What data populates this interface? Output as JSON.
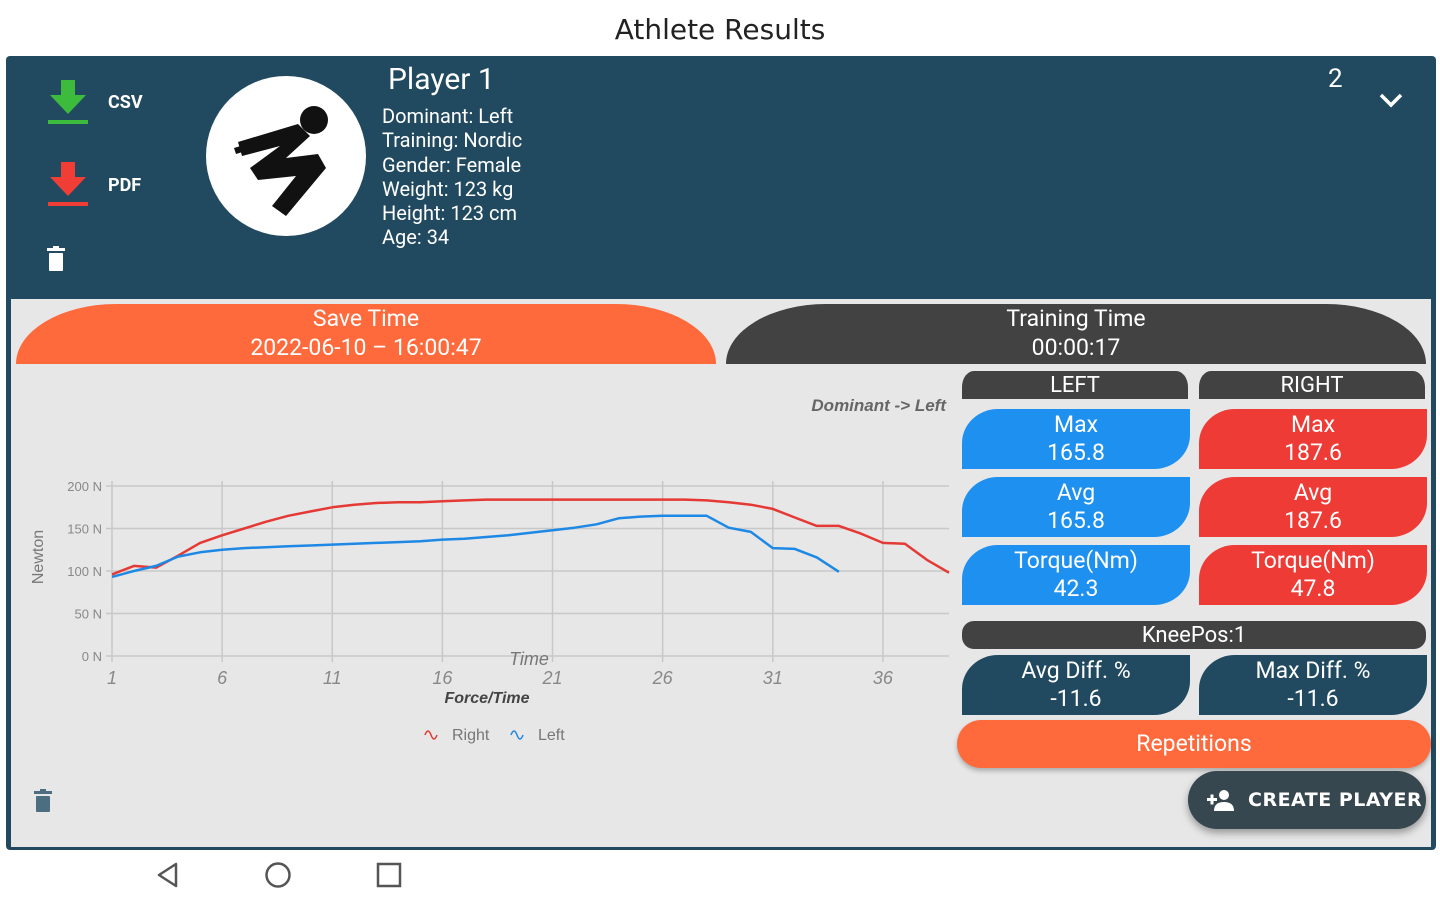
{
  "app": {
    "title": "Athlete Results"
  },
  "header": {
    "csv_label": "CSV",
    "pdf_label": "PDF",
    "player_name": "Player 1",
    "info": [
      "Dominant: Left",
      "Training: Nordic",
      "Gender: Female",
      "Weight: 123 kg",
      "Height: 123 cm",
      "Age: 34"
    ],
    "count": "2",
    "icons": {
      "csv": "download-green-icon",
      "pdf": "download-red-icon",
      "delete": "trash-icon",
      "expand": "chevron-down-icon"
    }
  },
  "save_time": {
    "label": "Save Time",
    "value": "2022-06-10 – 16:00:47"
  },
  "training_time": {
    "label": "Training Time",
    "value": "00:00:17"
  },
  "dominant_note": "Dominant -> Left",
  "left": {
    "header": "LEFT",
    "max_label": "Max",
    "max_value": "165.8",
    "avg_label": "Avg",
    "avg_value": "165.8",
    "torque_label": "Torque(Nm)",
    "torque_value": "42.3"
  },
  "right": {
    "header": "RIGHT",
    "max_label": "Max",
    "max_value": "187.6",
    "avg_label": "Avg",
    "avg_value": "187.6",
    "torque_label": "Torque(Nm)",
    "torque_value": "47.8"
  },
  "knee_pos": "KneePos:1",
  "avg_diff": {
    "label": "Avg Diff. %",
    "value": "-11.6"
  },
  "max_diff": {
    "label": "Max Diff. %",
    "value": "-11.6"
  },
  "repetitions": "Repetitions",
  "create_player": "CREATE PLAYER",
  "colors": {
    "navy": "#214a60",
    "orange": "#ff6a3c",
    "blue": "#1e90f0",
    "red": "#ef3b35",
    "dark": "#424242"
  },
  "chart_data": {
    "type": "line",
    "title": "Force/Time",
    "xlabel": "Time",
    "ylabel": "Newton",
    "x_ticks": [
      "1",
      "6",
      "11",
      "16",
      "21",
      "26",
      "31",
      "36"
    ],
    "y_ticks": [
      "0 N",
      "50 N",
      "100 N",
      "150 N",
      "200 N"
    ],
    "ylim": [
      0,
      200
    ],
    "xlim": [
      1,
      39
    ],
    "grid": true,
    "legend_position": "bottom-center",
    "series": [
      {
        "name": "Right",
        "color": "#e53935",
        "x": [
          1,
          2,
          3,
          4,
          5,
          6,
          7,
          8,
          9,
          10,
          11,
          12,
          13,
          14,
          15,
          16,
          17,
          18,
          19,
          20,
          21,
          22,
          23,
          24,
          25,
          26,
          27,
          28,
          29,
          30,
          31,
          32,
          33,
          34,
          35,
          36,
          37,
          38,
          39
        ],
        "values": [
          96,
          106,
          104,
          118,
          133,
          142,
          150,
          158,
          165,
          170,
          175,
          178,
          180,
          181,
          181,
          182,
          183,
          184,
          184,
          184,
          184,
          184,
          184,
          184,
          184,
          184,
          184,
          183,
          181,
          178,
          173,
          163,
          153,
          153,
          144,
          133,
          132,
          113,
          98
        ]
      },
      {
        "name": "Left",
        "color": "#1e88e5",
        "x": [
          1,
          2,
          3,
          4,
          5,
          6,
          7,
          8,
          9,
          10,
          11,
          12,
          13,
          14,
          15,
          16,
          17,
          18,
          19,
          20,
          21,
          22,
          23,
          24,
          25,
          26,
          27,
          28,
          29,
          30,
          31,
          32,
          33,
          34
        ],
        "values": [
          93,
          100,
          106,
          117,
          122,
          125,
          127,
          128,
          129,
          130,
          131,
          132,
          133,
          134,
          135,
          137,
          138,
          140,
          142,
          145,
          148,
          151,
          155,
          162,
          164,
          165,
          165,
          165,
          151,
          146,
          127,
          126,
          116,
          99
        ]
      }
    ]
  }
}
